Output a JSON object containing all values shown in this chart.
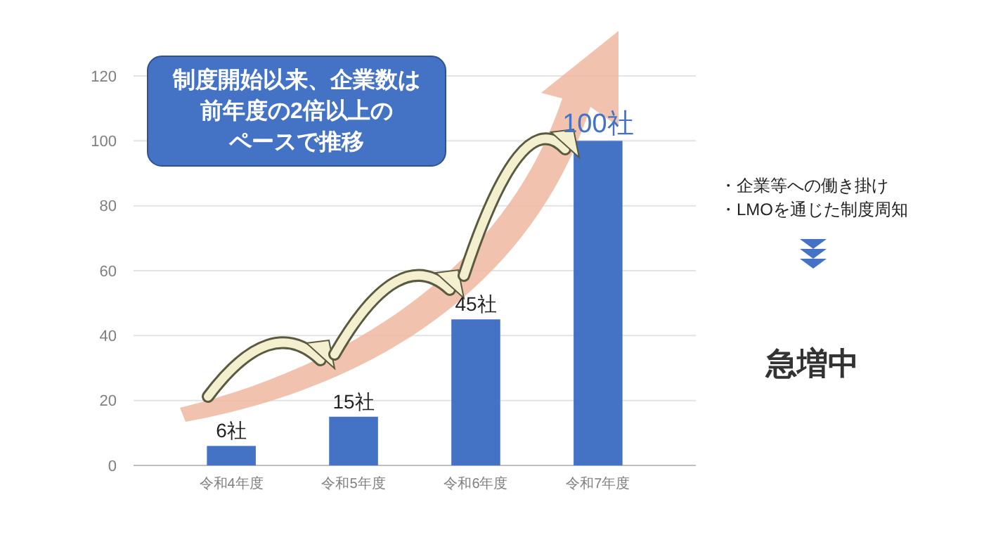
{
  "chart_data": {
    "type": "bar",
    "categories": [
      "令和4年度",
      "令和5年度",
      "令和6年度",
      "令和7年度"
    ],
    "values": [
      6,
      15,
      45,
      100
    ],
    "color": "#4472c4",
    "value_labels": [
      "6社",
      "15社",
      "45社",
      "100社"
    ],
    "ylim": [
      0,
      120
    ],
    "yticks": [
      0,
      20,
      40,
      60,
      80,
      100,
      120
    ],
    "grid": "y",
    "annotations": [
      "制度開始以来、企業数は",
      "前年度の2倍以上の",
      "ペースで推移",
      "・企業等への働き掛け",
      "・LMOを通じた制度周知",
      "急増中"
    ]
  }
}
